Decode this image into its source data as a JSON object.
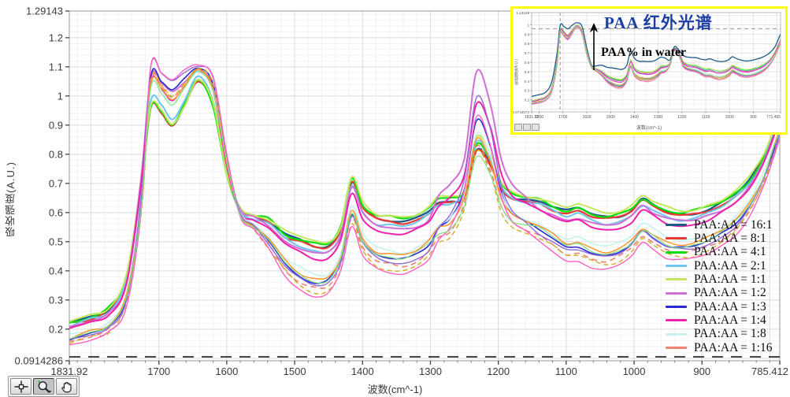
{
  "colors": {
    "page_bg": "#ffffff",
    "inset_border": "#ffff00",
    "grid_major": "#dcdcdf",
    "grid_minor": "#f2f2f4",
    "plot_frame": "#9a9a9a",
    "axis_text": "#3a3a3a",
    "cursor_line": "#2b2b2b",
    "inset_title_blue": "#1c3fa8"
  },
  "icons": {
    "toolbar": [
      "crosshair-cursor-icon",
      "zoom-magnifier-icon",
      "pan-hand-icon"
    ],
    "inset_arrow": "up-arrow-icon"
  },
  "toolbar": {
    "buttons": [
      {
        "name": "cursor-tool",
        "selected": false
      },
      {
        "name": "zoom-tool",
        "selected": true
      },
      {
        "name": "pan-tool",
        "selected": false
      }
    ]
  },
  "chart_data": {
    "type": "line",
    "title": "",
    "xlabel": "波数(cm^-1)",
    "ylabel": "吸收强度(A.U.)",
    "xlim": [
      1831.92,
      785.412
    ],
    "ylim": [
      0.0914286,
      1.29143
    ],
    "x_axis_reversed": true,
    "grid": true,
    "legend_position": "inside-right-bottom",
    "x_ticks": [
      1831.92,
      1700,
      1600,
      1500,
      1400,
      1300,
      1200,
      1100,
      1000,
      900,
      785.412
    ],
    "x_tick_labels": [
      "1831.92",
      "1700",
      "1600",
      "1500",
      "1400",
      "1300",
      "1200",
      "1100",
      "1000",
      "900",
      "785.412"
    ],
    "y_ticks": [
      1.29143,
      1.2,
      1.1,
      1,
      0.9,
      0.8,
      0.7,
      0.6,
      0.5,
      0.4,
      0.3,
      0.2,
      0.0914286
    ],
    "y_tick_labels": [
      "1.29143",
      "1.2",
      "1.1",
      "1",
      "0.9",
      "0.8",
      "0.7",
      "0.6",
      "0.5",
      "0.4",
      "0.3",
      "0.2",
      "0.0914286"
    ],
    "cursor_line_y": 0.105,
    "x": [
      1831.9,
      1802,
      1774,
      1748,
      1726,
      1712,
      1696,
      1680,
      1662,
      1642,
      1620,
      1600,
      1580,
      1560,
      1538,
      1514,
      1492,
      1470,
      1450,
      1432,
      1416,
      1400,
      1380,
      1360,
      1340,
      1320,
      1302,
      1288,
      1270,
      1250,
      1232,
      1212,
      1196,
      1180,
      1160,
      1140,
      1120,
      1100,
      1082,
      1062,
      1042,
      1022,
      1004,
      988,
      972,
      952,
      932,
      912,
      892,
      870,
      850,
      830,
      810,
      797,
      785.4
    ],
    "base": [
      0.185,
      0.205,
      0.23,
      0.33,
      0.64,
      1.0,
      0.985,
      0.945,
      1.005,
      1.072,
      1.0,
      0.76,
      0.6,
      0.565,
      0.525,
      0.46,
      0.425,
      0.405,
      0.41,
      0.475,
      0.635,
      0.545,
      0.5,
      0.49,
      0.485,
      0.5,
      0.53,
      0.565,
      0.575,
      0.63,
      0.8,
      0.74,
      0.64,
      0.6,
      0.585,
      0.575,
      0.55,
      0.525,
      0.53,
      0.51,
      0.5,
      0.51,
      0.535,
      0.575,
      0.555,
      0.53,
      0.52,
      0.525,
      0.54,
      0.565,
      0.6,
      0.655,
      0.74,
      0.82,
      0.9
    ],
    "spread": [
      0.038,
      0.038,
      0.042,
      0.048,
      0.055,
      -0.045,
      -0.045,
      -0.05,
      -0.04,
      -0.02,
      -0.035,
      -0.03,
      0.01,
      0.025,
      0.05,
      0.07,
      0.085,
      0.09,
      0.085,
      0.075,
      0.08,
      0.085,
      0.09,
      0.095,
      0.095,
      0.09,
      0.085,
      0.08,
      0.07,
      0.03,
      0.02,
      0.03,
      0.05,
      0.06,
      0.065,
      0.07,
      0.075,
      0.085,
      0.09,
      0.09,
      0.09,
      0.085,
      0.08,
      0.075,
      0.075,
      0.08,
      0.08,
      0.08,
      0.08,
      0.075,
      0.07,
      0.06,
      0.05,
      0.045,
      0.045
    ],
    "dilute_boost": [
      0,
      0,
      0,
      0,
      0.05,
      0.1,
      0.09,
      0.1,
      0.07,
      0.03,
      0.05,
      0.02,
      0,
      0,
      0,
      0,
      0,
      0,
      0,
      0,
      0,
      0,
      0,
      0,
      0,
      0,
      0,
      0.04,
      0.08,
      0.14,
      0.27,
      0.22,
      0.12,
      0.06,
      0.03,
      0,
      0,
      0,
      0,
      0,
      0,
      0,
      0,
      0,
      0,
      0,
      0,
      0,
      0,
      0,
      0,
      0,
      0,
      0,
      0
    ],
    "series": [
      {
        "label": "PAA:AA = 16:1",
        "color": "#1e5a8a",
        "c": 0.92,
        "m": 0,
        "width": 2.4
      },
      {
        "label": "PAA:AA = 8:1",
        "color": "#e93b31",
        "c": 0.84,
        "m": 0,
        "width": 2.2
      },
      {
        "label": "PAA:AA = 4:1",
        "color": "#0ddd0d",
        "c": 0.98,
        "m": 0.05,
        "width": 2.2
      },
      {
        "label": "PAA:AA = 2:1",
        "color": "#6ec6ee",
        "c": 0.72,
        "m": 0.1,
        "width": 2.0
      },
      {
        "label": "PAA:AA = 1:1",
        "color": "#c3e85e",
        "c": 1.08,
        "m": 0.15,
        "width": 2.0
      },
      {
        "label": "PAA:AA = 1:2",
        "color": "#cf6fd4",
        "c": 0.6,
        "m": 1.0,
        "width": 2.0
      },
      {
        "label": "PAA:AA = 1:3",
        "color": "#2a2ad4",
        "c": -0.5,
        "m": 0.45,
        "width": 1.6
      },
      {
        "label": "PAA:AA = 1:4",
        "color": "#ee22aa",
        "c": 0.45,
        "m": 0.62,
        "width": 2.0
      },
      {
        "label": "PAA:AA = 1:8",
        "color": "#c9f0f0",
        "c": -0.2,
        "m": 0.3,
        "width": 1.6
      },
      {
        "label": "PAA:AA = 1:16",
        "color": "#f08070",
        "c": -0.75,
        "m": 0.15,
        "width": 1.6,
        "dash": "7 5"
      },
      {
        "label": "",
        "color": "#ff9022",
        "c": -0.35,
        "m": 0.2,
        "width": 1.4
      },
      {
        "label": "",
        "color": "#cfae22",
        "c": -0.88,
        "m": 0.1,
        "width": 1.4,
        "dash": "6 4"
      },
      {
        "label": "",
        "color": "#8f6ad6",
        "c": -0.62,
        "m": 0.78,
        "width": 1.4
      },
      {
        "label": "",
        "color": "#ff5fc0",
        "c": -1.05,
        "m": 0.55,
        "width": 1.4
      },
      {
        "label": "",
        "color": "#7fe07f",
        "c": -0.45,
        "m": 0,
        "width": 1.2
      }
    ]
  },
  "inset": {
    "title": "PAA 红外光谱",
    "subtitle": "PAA% in water",
    "xlabel": "波数(cm^-1)",
    "ylabel": "吸收强度(A.U.)",
    "xlim": [
      1831.92,
      771.495
    ],
    "ylim": [
      0.0716572,
      1.13169
    ],
    "x_tick_labels": [
      "1831.92",
      "1800",
      "1700",
      "1600",
      "1500",
      "1400",
      "1300",
      "1200",
      "1100",
      "1000",
      "900",
      "771.495"
    ],
    "y_tick_labels": [
      "1.13169",
      "1",
      "0.9",
      "0.8",
      "0.7",
      "0.6",
      "0.5",
      "0.4",
      "0.3",
      "0.2",
      "0.0716572"
    ],
    "dashed_h_line_y": 0.96,
    "dashed_v_line_x": 1712,
    "navy_c": 1.9,
    "others_c_scale": 0.55,
    "base_scale": 0.92,
    "spread_scale": 0.9
  }
}
